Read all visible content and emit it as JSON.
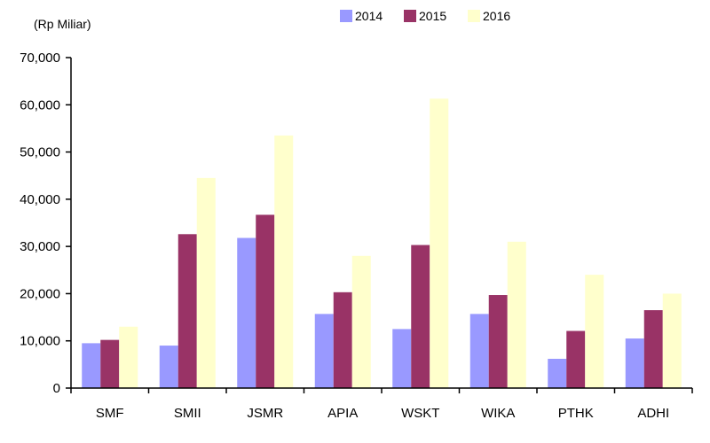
{
  "chart_data": {
    "type": "bar",
    "unit_label": "(Rp Miliar)",
    "categories": [
      "SMF",
      "SMII",
      "JSMR",
      "APIA",
      "WSKT",
      "WIKA",
      "PTHK",
      "ADHI"
    ],
    "series": [
      {
        "name": "2014",
        "color": "#9999ff",
        "values": [
          9500,
          9000,
          31800,
          15700,
          12500,
          15700,
          6200,
          10500
        ]
      },
      {
        "name": "2015",
        "color": "#993366",
        "values": [
          10200,
          32600,
          36700,
          20300,
          30300,
          19700,
          12100,
          16500
        ]
      },
      {
        "name": "2016",
        "color": "#ffffcc",
        "values": [
          13000,
          44500,
          53500,
          28000,
          61300,
          31000,
          24000,
          20000
        ]
      }
    ],
    "ylim": [
      0,
      70000
    ],
    "yticks": [
      "0",
      "10,000",
      "20,000",
      "30,000",
      "40,000",
      "50,000",
      "60,000",
      "70,000"
    ],
    "legend_position": "top",
    "grid": false
  }
}
